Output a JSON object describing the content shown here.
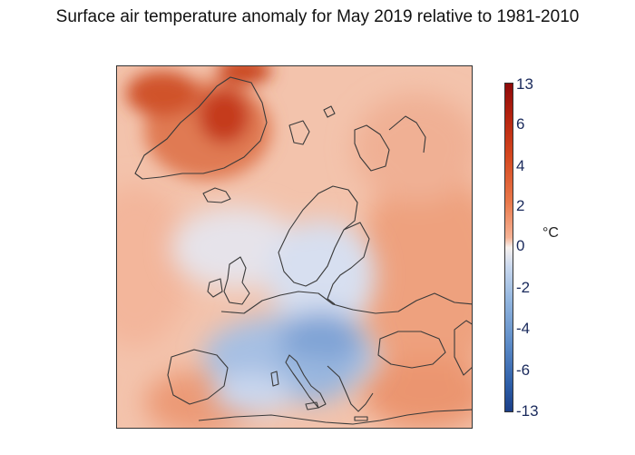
{
  "title": "Surface air temperature anomaly for May 2019 relative to 1981-2010",
  "colorbar": {
    "ticks": [
      "13",
      "6",
      "4",
      "2",
      "0",
      "-2",
      "-4",
      "-6",
      "-13"
    ],
    "unit": "°C"
  },
  "colors": {
    "warm": "#e9825a",
    "strong_warm": "#c63a1b",
    "neutral": "#f5ece8",
    "cool": "#b8cdea",
    "strong_cool": "#5d86c4"
  }
}
